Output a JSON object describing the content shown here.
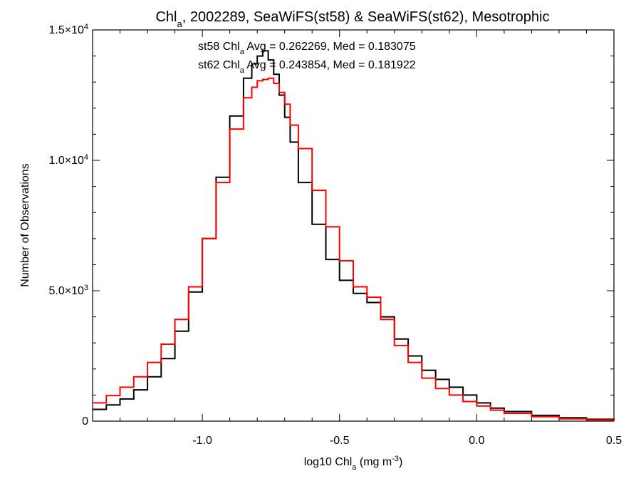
{
  "chart_data": {
    "type": "line",
    "title": "Chl_a, 2002289, SeaWiFS(st58) & SeaWiFS(st62), Mesotrophic",
    "title_parts": {
      "pre": "Chl",
      "sub": "a",
      "post": ", 2002289, SeaWiFS(st58) & SeaWiFS(st62), Mesotrophic"
    },
    "xlabel_parts": {
      "pre": "log10 Chl",
      "sub": "a",
      "mid": " (mg m",
      "sup": "-3",
      "post": ")"
    },
    "ylabel": "Number of Observations",
    "xlim": [
      -1.4,
      0.5
    ],
    "ylim": [
      0,
      15000
    ],
    "x_ticks": [
      {
        "value": -1.0,
        "label": "-1.0"
      },
      {
        "value": -0.5,
        "label": "-0.5"
      },
      {
        "value": 0.0,
        "label": "0.0"
      },
      {
        "value": 0.5,
        "label": "0.5"
      }
    ],
    "y_ticks": [
      {
        "value": 0,
        "mant": "0",
        "exp": ""
      },
      {
        "value": 5000,
        "mant": "5.0×10",
        "exp": "3"
      },
      {
        "value": 10000,
        "mant": "1.0×10",
        "exp": "4"
      },
      {
        "value": 15000,
        "mant": "1.5×10",
        "exp": "4"
      }
    ],
    "annotations": [
      {
        "pre": "st58 Chl",
        "sub": "a",
        "post": " Avg = 0.262269, Med = 0.183075",
        "color": "#000000"
      },
      {
        "pre": "st62 Chl",
        "sub": "a",
        "post": " Avg = 0.243854, Med = 0.181922",
        "color": "#ff0000"
      }
    ],
    "series": [
      {
        "color": "#000000",
        "x": [
          -1.4,
          -1.35,
          -1.3,
          -1.25,
          -1.2,
          -1.15,
          -1.1,
          -1.05,
          -1.0,
          -0.95,
          -0.9,
          -0.85,
          -0.82,
          -0.8,
          -0.78,
          -0.76,
          -0.74,
          -0.72,
          -0.7,
          -0.68,
          -0.65,
          -0.6,
          -0.55,
          -0.5,
          -0.45,
          -0.4,
          -0.35,
          -0.3,
          -0.25,
          -0.2,
          -0.15,
          -0.1,
          -0.05,
          0.0,
          0.05,
          0.1,
          0.2,
          0.3,
          0.4,
          0.5
        ],
        "y": [
          450,
          620,
          850,
          1200,
          1700,
          2400,
          3450,
          4950,
          7000,
          9350,
          11700,
          13150,
          13700,
          14000,
          14200,
          13850,
          13300,
          12500,
          11650,
          10700,
          9150,
          7550,
          6200,
          5400,
          4900,
          4550,
          4000,
          3150,
          2500,
          1950,
          1600,
          1300,
          1000,
          700,
          500,
          370,
          220,
          130,
          70,
          30
        ]
      },
      {
        "color": "#ff0000",
        "x": [
          -1.4,
          -1.35,
          -1.3,
          -1.25,
          -1.2,
          -1.15,
          -1.1,
          -1.05,
          -1.0,
          -0.95,
          -0.9,
          -0.85,
          -0.82,
          -0.8,
          -0.78,
          -0.76,
          -0.74,
          -0.72,
          -0.7,
          -0.68,
          -0.65,
          -0.6,
          -0.55,
          -0.5,
          -0.45,
          -0.4,
          -0.35,
          -0.3,
          -0.25,
          -0.2,
          -0.15,
          -0.1,
          -0.05,
          0.0,
          0.05,
          0.1,
          0.2,
          0.3,
          0.4,
          0.5
        ],
        "y": [
          700,
          980,
          1300,
          1700,
          2250,
          2950,
          3900,
          5150,
          7000,
          9150,
          11200,
          12400,
          12800,
          13050,
          13100,
          13150,
          12950,
          12600,
          12150,
          11350,
          10450,
          8850,
          7450,
          6150,
          5150,
          4750,
          3900,
          2900,
          2250,
          1650,
          1250,
          1000,
          750,
          580,
          420,
          300,
          170,
          90,
          45,
          20
        ]
      }
    ]
  }
}
